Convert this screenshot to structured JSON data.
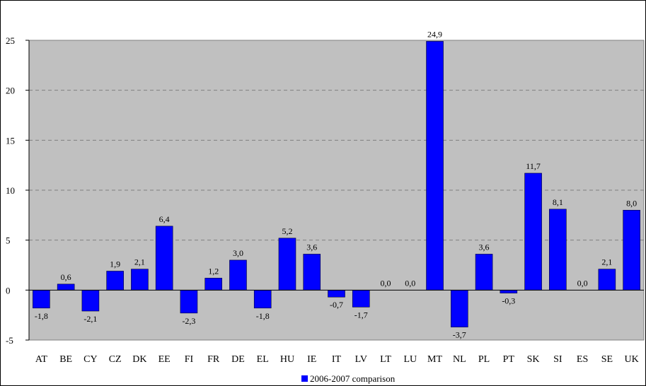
{
  "chart_data": {
    "type": "bar",
    "categories": [
      "AT",
      "BE",
      "CY",
      "CZ",
      "DK",
      "EE",
      "FI",
      "FR",
      "DE",
      "EL",
      "HU",
      "IE",
      "IT",
      "LV",
      "LT",
      "LU",
      "MT",
      "NL",
      "PL",
      "PT",
      "SK",
      "SI",
      "ES",
      "SE",
      "UK"
    ],
    "series": [
      {
        "name": "2006-2007 comparison",
        "values": [
          -1.8,
          0.6,
          -2.1,
          1.9,
          2.1,
          6.4,
          -2.3,
          1.2,
          3.0,
          -1.8,
          5.2,
          3.6,
          -0.7,
          -1.7,
          0.0,
          0.0,
          24.9,
          -3.7,
          3.6,
          -0.3,
          11.7,
          8.1,
          0.0,
          2.1,
          8.0
        ],
        "labels": [
          "-1,8",
          "0,6",
          "-2,1",
          "1,9",
          "2,1",
          "6,4",
          "-2,3",
          "1,2",
          "3,0",
          "-1,8",
          "5,2",
          "3,6",
          "-0,7",
          "-1,7",
          "0,0",
          "0,0",
          "24,9",
          "-3,7",
          "3,6",
          "-0,3",
          "11,7",
          "8,1",
          "0,0",
          "2,1",
          "8,0"
        ],
        "color": "#0000FF"
      }
    ],
    "yticks": [
      "-5",
      "0",
      "5",
      "10",
      "15",
      "20",
      "25"
    ],
    "ylim": [
      -5,
      25
    ],
    "title": "",
    "xlabel": "",
    "ylabel": "",
    "grid": true,
    "legend_position": "bottom",
    "plot_background": "#C0C0C0"
  }
}
